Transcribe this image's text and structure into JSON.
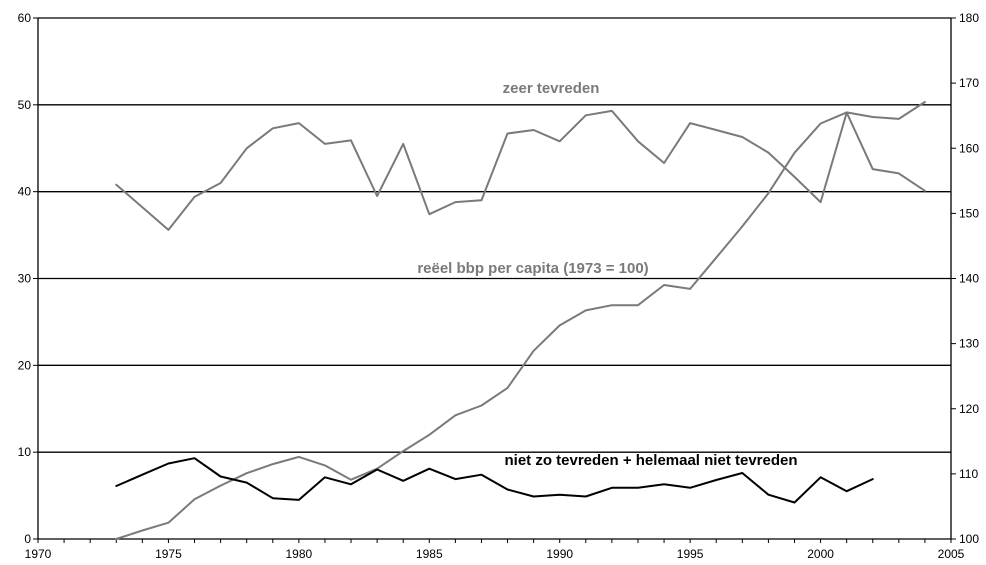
{
  "chart_data": {
    "type": "line",
    "x_axis": {
      "range": [
        1970,
        2005
      ],
      "ticks": [
        1970,
        1975,
        1980,
        1985,
        1990,
        1995,
        2000,
        2005
      ]
    },
    "y_left": {
      "range": [
        0,
        60
      ],
      "ticks": [
        0,
        10,
        20,
        30,
        40,
        50,
        60
      ]
    },
    "y_right": {
      "range": [
        100,
        180
      ],
      "ticks": [
        100,
        110,
        120,
        130,
        140,
        150,
        160,
        170,
        180
      ]
    },
    "grid": "horizontal lines at left-axis ticks",
    "series": [
      {
        "name": "zeer tevreden",
        "axis": "left",
        "color": "#7a7a7a",
        "x": [
          1973,
          1975,
          1976,
          1977,
          1978,
          1979,
          1980,
          1981,
          1982,
          1983,
          1984,
          1985,
          1986,
          1987,
          1988,
          1989,
          1990,
          1991,
          1992,
          1993,
          1994,
          1995,
          1996,
          1997,
          1998,
          1999,
          2000,
          2001,
          2002,
          2003,
          2004
        ],
        "y": [
          40.8,
          35.6,
          39.4,
          41.0,
          45.0,
          47.3,
          47.9,
          45.5,
          45.9,
          39.5,
          45.5,
          37.4,
          38.8,
          39.0,
          46.7,
          47.1,
          45.8,
          48.8,
          49.3,
          45.8,
          43.3,
          47.9,
          47.1,
          46.3,
          44.5,
          41.7,
          38.8,
          49.1,
          42.6,
          42.1,
          40.1
        ]
      },
      {
        "name": "reëel bbp per capita (1973 = 100)",
        "axis": "right",
        "color": "#7a7a7a",
        "x": [
          1973,
          1974,
          1975,
          1976,
          1977,
          1978,
          1979,
          1980,
          1981,
          1982,
          1983,
          1984,
          1985,
          1986,
          1987,
          1988,
          1989,
          1990,
          1991,
          1992,
          1993,
          1994,
          1995,
          1996,
          1997,
          1998,
          1999,
          2000,
          2001,
          2002,
          2003,
          2004
        ],
        "y": [
          100,
          101.3,
          102.5,
          106.1,
          108.2,
          110.1,
          111.5,
          112.6,
          111.3,
          109.1,
          110.8,
          113.5,
          116.0,
          119.0,
          120.5,
          123.2,
          128.9,
          132.8,
          135.1,
          135.9,
          135.9,
          139.0,
          138.4,
          143.2,
          148.0,
          153.1,
          159.3,
          163.8,
          165.5,
          164.8,
          164.5,
          167.1
        ]
      },
      {
        "name": "niet zo tevreden + helemaal niet tevreden",
        "axis": "left",
        "color": "#000000",
        "x": [
          1973,
          1974,
          1975,
          1976,
          1977,
          1978,
          1979,
          1980,
          1981,
          1982,
          1983,
          1984,
          1985,
          1986,
          1987,
          1988,
          1989,
          1990,
          1991,
          1992,
          1993,
          1994,
          1995,
          1996,
          1997,
          1998,
          1999,
          2000,
          2001,
          2002
        ],
        "y": [
          6.1,
          7.4,
          8.7,
          9.3,
          7.2,
          6.5,
          4.7,
          4.5,
          7.1,
          6.3,
          8.0,
          6.7,
          8.1,
          6.9,
          7.4,
          5.7,
          4.9,
          5.1,
          4.9,
          5.9,
          5.9,
          6.3,
          5.9,
          6.8,
          7.6,
          5.1,
          4.2,
          7.1,
          5.5,
          6.9
        ]
      }
    ]
  }
}
